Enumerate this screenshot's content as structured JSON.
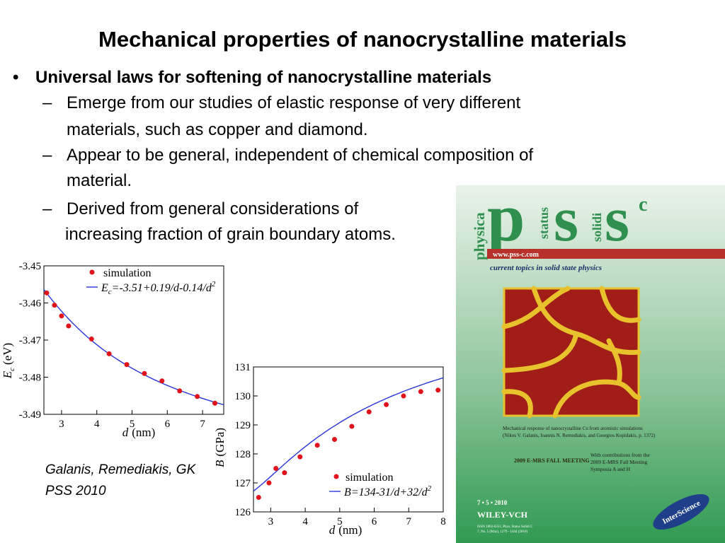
{
  "slide": {
    "title": "Mechanical properties of nanocrystalline materials",
    "bullet": "Universal laws for softening of nanocrystalline materials",
    "bullet_marker": "•",
    "dash": "–",
    "sub_lines": [
      "Emerge from our studies of elastic response of very different",
      "materials, such as copper and diamond.",
      "Appear to be general, independent of chemical composition of",
      "material.",
      "Derived from general considerations of",
      "increasing fraction of grain boundary atoms."
    ],
    "citation": [
      "Galanis, Remediakis, GK",
      "PSS 2010"
    ]
  },
  "chart_data": [
    {
      "type": "scatter",
      "ylabel_main": "E",
      "ylabel_sub": "c",
      "ylabel_unit": "(eV)",
      "xlabel_main": "d",
      "xlabel_unit": "(nm)",
      "legend": {
        "marker": "simulation",
        "fit": "=-3.51+0.19/d-0.14/d",
        "fit_var": "E",
        "fit_sub": "c",
        "fit_exp": "2"
      },
      "xlim": [
        2.5,
        7.6
      ],
      "ylim": [
        -3.49,
        -3.45
      ],
      "xticks": [
        3,
        4,
        5,
        6,
        7
      ],
      "yticks": [
        -3.45,
        -3.46,
        -3.47,
        -3.48,
        -3.49
      ],
      "ytick_labels": [
        "-3.45",
        "-3.46",
        "-3.47",
        "-3.48",
        "-3.49"
      ],
      "x": [
        2.58,
        2.8,
        3.0,
        3.2,
        3.85,
        4.35,
        4.85,
        5.35,
        5.85,
        6.35,
        6.85,
        7.35
      ],
      "y": [
        -3.4573,
        -3.4606,
        -3.4635,
        -3.4662,
        -3.4697,
        -3.4737,
        -3.4766,
        -3.479,
        -3.481,
        -3.4837,
        -3.4852,
        -3.487
      ],
      "fit": {
        "a": -3.51,
        "b": 0.19,
        "c": -0.14
      }
    },
    {
      "type": "scatter",
      "ylabel_main": "B",
      "ylabel_unit": "(GPa)",
      "xlabel_main": "d",
      "xlabel_unit": "(nm)",
      "legend": {
        "marker": "simulation",
        "fit": "B=134-31/d+32/d",
        "fit_exp": "2"
      },
      "xlim": [
        2.5,
        8
      ],
      "ylim": [
        126,
        131
      ],
      "xticks": [
        3,
        4,
        5,
        6,
        7,
        8
      ],
      "yticks": [
        126,
        127,
        128,
        129,
        130,
        131
      ],
      "x": [
        2.65,
        2.95,
        3.15,
        3.4,
        3.85,
        4.35,
        4.85,
        5.35,
        5.85,
        6.35,
        6.85,
        7.35,
        7.85
      ],
      "y": [
        126.5,
        127.0,
        127.5,
        127.35,
        127.9,
        128.3,
        128.5,
        128.95,
        129.45,
        129.7,
        130.0,
        130.15,
        130.2
      ],
      "fit": {
        "a": 134,
        "b": -31,
        "c": 32
      }
    }
  ],
  "cover": {
    "spine": [
      "physica",
      "status",
      "solidi"
    ],
    "letters": [
      "p",
      "s",
      "s",
      "c"
    ],
    "url": "www.pss-c.com",
    "subtitle": "current topics in solid state physics",
    "caption": [
      "Mechanical response of nanocrystalline Cu from atomistic simulations",
      "(Nikos V. Galanis, Ioannis N. Remediakis, and Georgios Kopidakis, p. 1372)"
    ],
    "meeting_label": "2009 E-MRS FALL MEETING",
    "contributions": [
      "With contributions from the",
      "2009 E-MRS Fall Meeting",
      "Symposia A and H"
    ],
    "issue": "7 • 5 • 2010",
    "publisher": "WILEY-VCH",
    "issn": [
      "ISSN 1862-6351, Phys. Status Solidi C",
      "7, No. 5 (May), 1279 - 1444 (2010)"
    ],
    "interscience": "InterScience",
    "colors": {
      "green": "#2f8f4e",
      "red": "#b8302a",
      "grain": "#a11d18",
      "boundary": "#e8c22c",
      "bg_top": "#eaf3ea",
      "bg_bottom": "#2f9a52"
    }
  }
}
